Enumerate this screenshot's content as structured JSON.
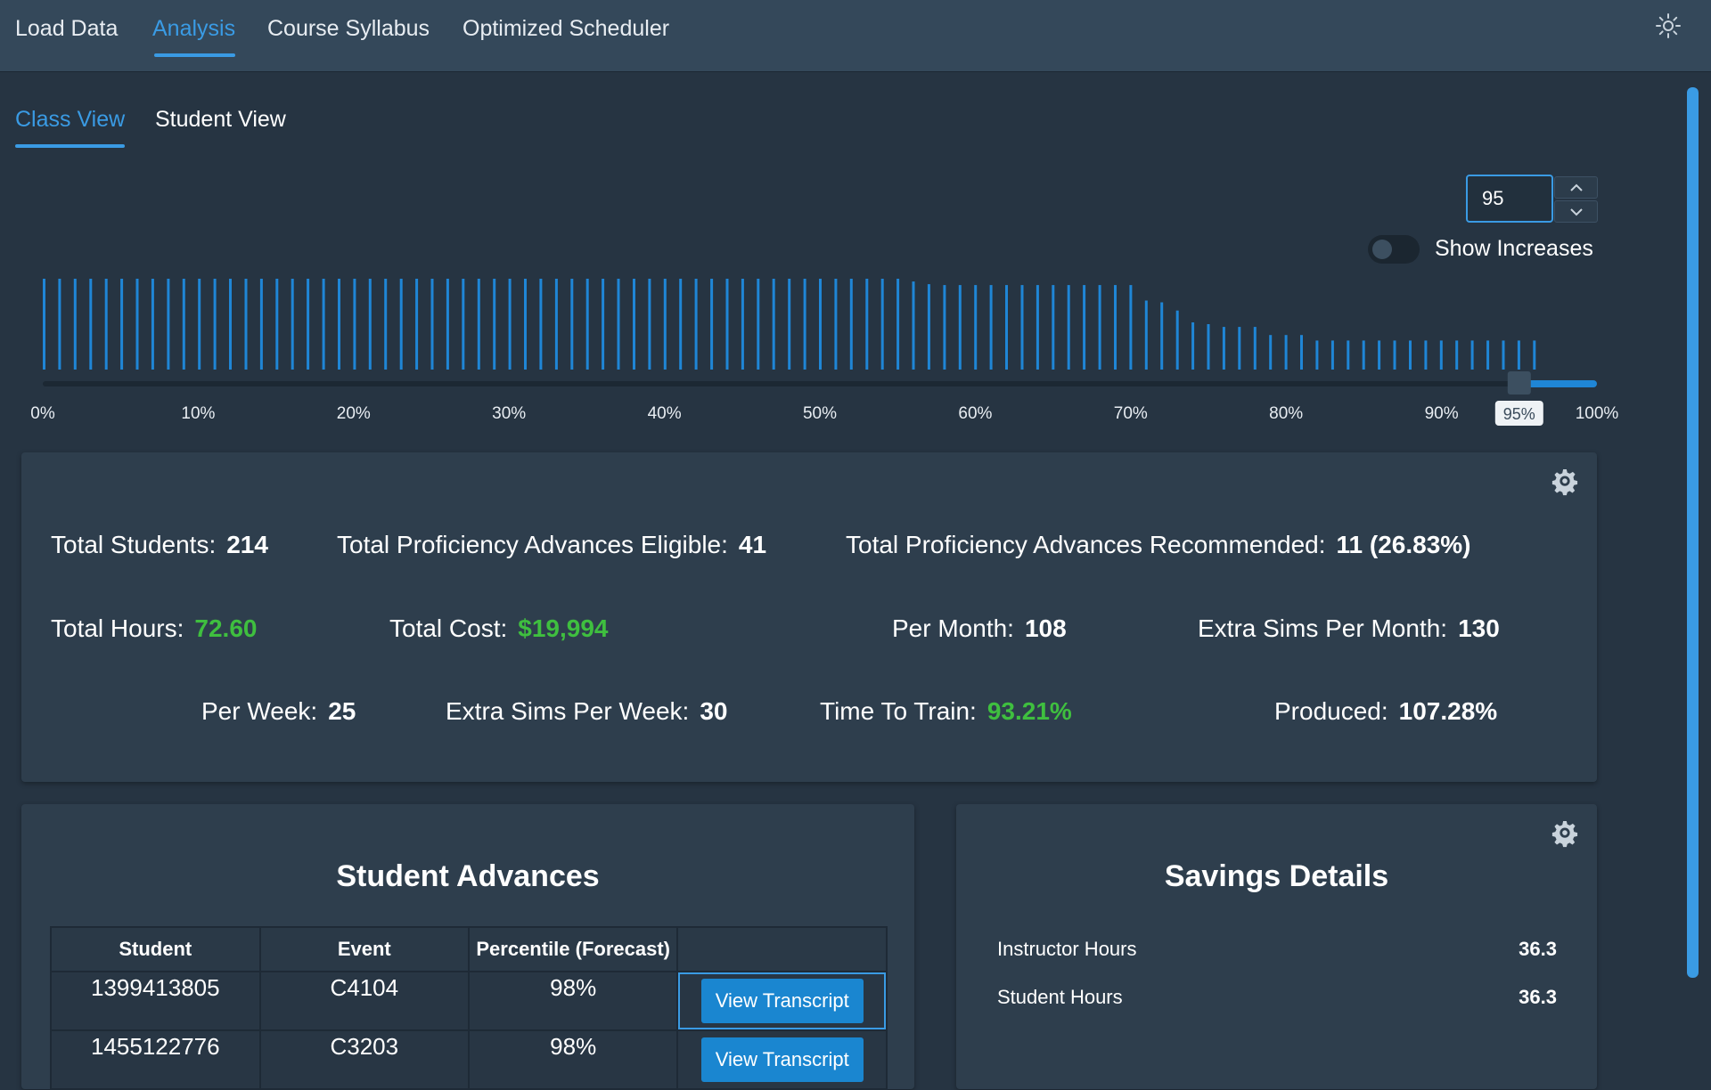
{
  "nav": {
    "tabs": [
      {
        "label": "Load Data"
      },
      {
        "label": "Analysis"
      },
      {
        "label": "Course Syllabus"
      },
      {
        "label": "Optimized Scheduler"
      }
    ],
    "active_tab": "Analysis"
  },
  "subtabs": [
    {
      "label": "Class View"
    },
    {
      "label": "Student View"
    }
  ],
  "threshold": {
    "value": "95",
    "handle_label": "95%",
    "show_increases_label": "Show Increases",
    "show_increases_on": false,
    "slider_fraction": 0.95
  },
  "histogram": {
    "tick_labels": [
      "0%",
      "10%",
      "20%",
      "30%",
      "40%",
      "50%",
      "60%",
      "70%",
      "80%",
      "90%",
      "100%"
    ],
    "bar_levels": [
      1,
      1,
      1,
      1,
      1,
      1,
      1,
      1,
      1,
      1,
      1,
      1,
      1,
      1,
      1,
      1,
      1,
      1,
      1,
      1,
      1,
      1,
      1,
      1,
      1,
      1,
      1,
      1,
      1,
      1,
      1,
      1,
      1,
      1,
      1,
      1,
      1,
      1,
      1,
      1,
      1,
      1,
      1,
      1,
      1,
      1,
      1,
      1,
      1,
      1,
      1,
      1,
      1,
      1,
      1,
      1,
      0.97,
      0.94,
      0.93,
      0.93,
      0.93,
      0.93,
      0.93,
      0.93,
      0.93,
      0.93,
      0.93,
      0.93,
      0.93,
      0.93,
      0.93,
      0.76,
      0.74,
      0.65,
      0.52,
      0.5,
      0.47,
      0.47,
      0.47,
      0.38,
      0.38,
      0.38,
      0.32,
      0.32,
      0.32,
      0.32,
      0.32,
      0.32,
      0.32,
      0.32,
      0.32,
      0.32,
      0.32,
      0.32,
      0.32,
      0.32,
      0.32
    ]
  },
  "summary": {
    "total_students_label": "Total Students:",
    "total_students": "214",
    "eligible_label": "Total Proficiency Advances Eligible:",
    "eligible": "41",
    "recommended_label": "Total Proficiency Advances Recommended:",
    "recommended": "11 (26.83%)",
    "total_hours_label": "Total Hours:",
    "total_hours": "72.60",
    "total_cost_label": "Total Cost:",
    "total_cost": "$19,994",
    "per_month_label": "Per Month:",
    "per_month": "108",
    "extra_sims_month_label": "Extra Sims Per Month:",
    "extra_sims_month": "130",
    "per_week_label": "Per Week:",
    "per_week": "25",
    "extra_sims_week_label": "Extra Sims Per Week:",
    "extra_sims_week": "30",
    "time_to_train_label": "Time To Train:",
    "time_to_train": "93.21%",
    "produced_label": "Produced:",
    "produced": "107.28%"
  },
  "advances": {
    "title": "Student Advances",
    "columns": [
      "Student",
      "Event",
      "Percentile (Forecast)",
      ""
    ],
    "button_label": "View Transcript",
    "rows": [
      {
        "student": "1399413805",
        "event": "C4104",
        "percentile": "98%"
      },
      {
        "student": "1455122776",
        "event": "C3203",
        "percentile": "98%"
      }
    ]
  },
  "savings": {
    "title": "Savings Details",
    "rows": [
      {
        "label": "Instructor Hours",
        "value": "36.3"
      },
      {
        "label": "Student Hours",
        "value": "36.3"
      }
    ]
  },
  "colors": {
    "accent": "#3a9be4",
    "positive": "#3fbf3f",
    "background": "#263442",
    "panel": "#2e3e4d"
  },
  "icons": {
    "theme": "sun-icon",
    "settings": "gear-icon"
  }
}
